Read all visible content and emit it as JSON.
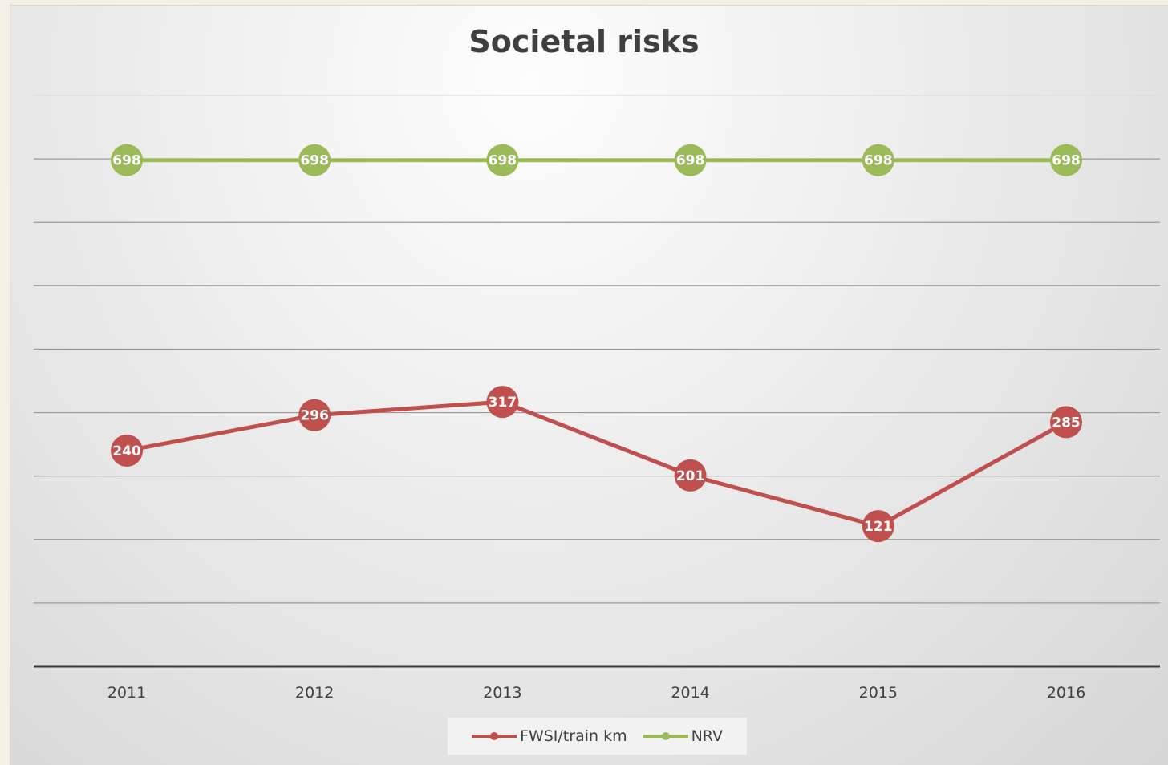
{
  "chart_data": {
    "type": "line",
    "title": "Societal risks",
    "categories": [
      "2011",
      "2012",
      "2013",
      "2014",
      "2015",
      "2016"
    ],
    "series": [
      {
        "name": "FWSI/train km",
        "values": [
          240,
          296,
          317,
          201,
          121,
          285
        ],
        "color": "#c0504d"
      },
      {
        "name": "NRV",
        "values": [
          698,
          698,
          698,
          698,
          698,
          698
        ],
        "color": "#9bbb59"
      }
    ],
    "ylim": [
      -100,
      800
    ],
    "grid": true,
    "legend_position": "bottom"
  }
}
